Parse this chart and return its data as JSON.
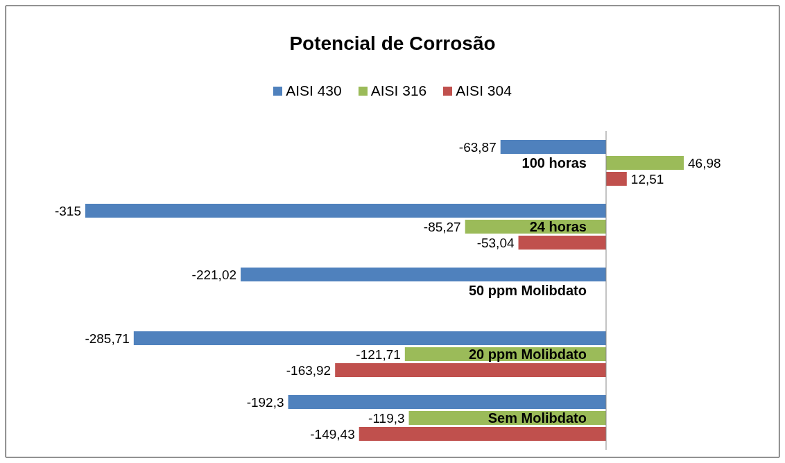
{
  "chart_data": {
    "type": "bar",
    "orientation": "horizontal",
    "title": "Potencial de Corrosão",
    "categories": [
      "100 horas",
      "24 horas",
      "50 ppm Molibdato",
      "20 ppm Molibdato",
      "Sem Molibdato"
    ],
    "series": [
      {
        "name": "AISI 430",
        "color": "#4f81bd",
        "values": [
          -63.87,
          -315,
          -221.02,
          -285.71,
          -192.3
        ],
        "value_labels": [
          "-63,87",
          "-315",
          "-221,02",
          "-285,71",
          "-192,3"
        ]
      },
      {
        "name": "AISI 316",
        "color": "#9bbb59",
        "values": [
          46.98,
          -85.27,
          null,
          -121.71,
          -119.3
        ],
        "value_labels": [
          "46,98",
          "-85,27",
          null,
          "-121,71",
          "-119,3"
        ]
      },
      {
        "name": "AISI 304",
        "color": "#c0504d",
        "values": [
          12.51,
          -53.04,
          null,
          -163.92,
          -149.43
        ],
        "value_labels": [
          "12,51",
          "-53,04",
          null,
          "-163,92",
          "-149,43"
        ]
      }
    ],
    "legend": "top",
    "tick_labels": "y"
  }
}
